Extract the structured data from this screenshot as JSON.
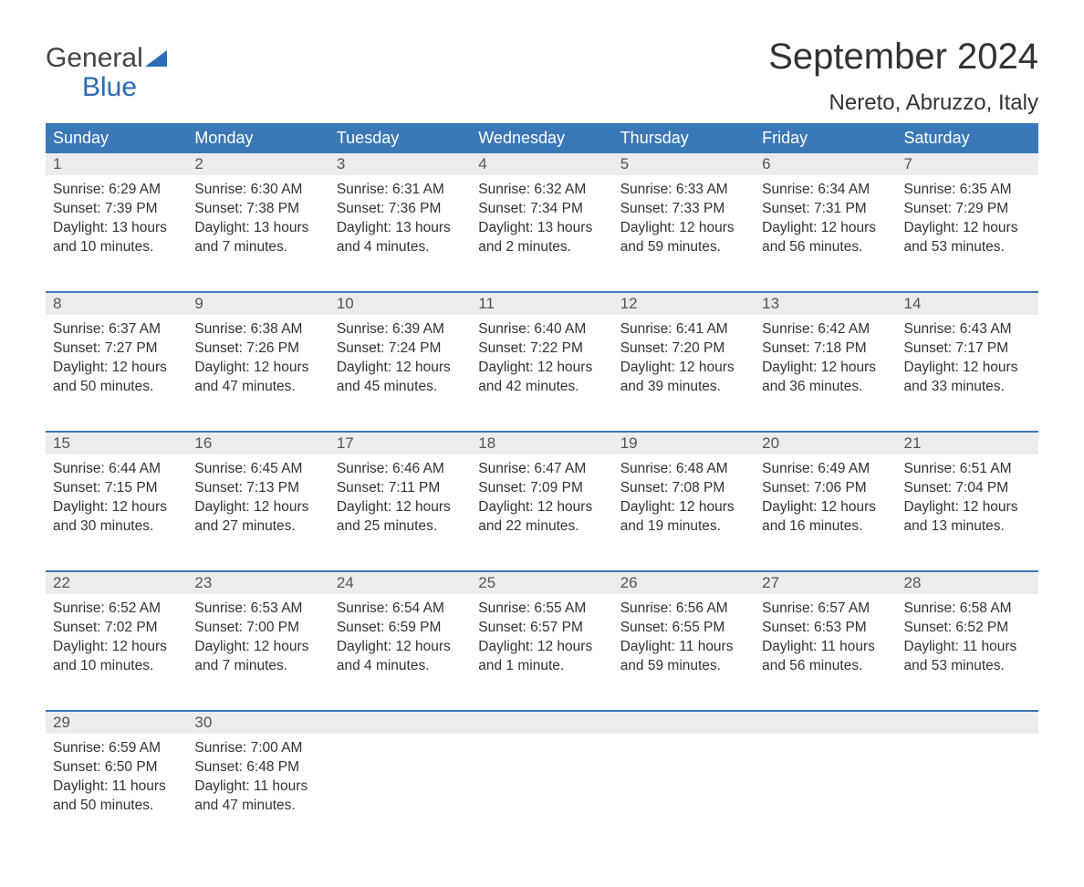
{
  "logo": {
    "text1": "General",
    "text2": "Blue"
  },
  "title": "September 2024",
  "location": "Nereto, Abruzzo, Italy",
  "colors": {
    "header_bg": "#3b78b8",
    "header_text": "#ffffff",
    "daynum_bg": "#ececec",
    "body_text": "#333333",
    "logo_blue": "#2a6db5",
    "rule": "#3b78b8"
  },
  "weekdays": [
    "Sunday",
    "Monday",
    "Tuesday",
    "Wednesday",
    "Thursday",
    "Friday",
    "Saturday"
  ],
  "weeks": [
    [
      {
        "n": "1",
        "sunrise": "6:29 AM",
        "sunset": "7:39 PM",
        "daylight": "13 hours and 10 minutes."
      },
      {
        "n": "2",
        "sunrise": "6:30 AM",
        "sunset": "7:38 PM",
        "daylight": "13 hours and 7 minutes."
      },
      {
        "n": "3",
        "sunrise": "6:31 AM",
        "sunset": "7:36 PM",
        "daylight": "13 hours and 4 minutes."
      },
      {
        "n": "4",
        "sunrise": "6:32 AM",
        "sunset": "7:34 PM",
        "daylight": "13 hours and 2 minutes."
      },
      {
        "n": "5",
        "sunrise": "6:33 AM",
        "sunset": "7:33 PM",
        "daylight": "12 hours and 59 minutes."
      },
      {
        "n": "6",
        "sunrise": "6:34 AM",
        "sunset": "7:31 PM",
        "daylight": "12 hours and 56 minutes."
      },
      {
        "n": "7",
        "sunrise": "6:35 AM",
        "sunset": "7:29 PM",
        "daylight": "12 hours and 53 minutes."
      }
    ],
    [
      {
        "n": "8",
        "sunrise": "6:37 AM",
        "sunset": "7:27 PM",
        "daylight": "12 hours and 50 minutes."
      },
      {
        "n": "9",
        "sunrise": "6:38 AM",
        "sunset": "7:26 PM",
        "daylight": "12 hours and 47 minutes."
      },
      {
        "n": "10",
        "sunrise": "6:39 AM",
        "sunset": "7:24 PM",
        "daylight": "12 hours and 45 minutes."
      },
      {
        "n": "11",
        "sunrise": "6:40 AM",
        "sunset": "7:22 PM",
        "daylight": "12 hours and 42 minutes."
      },
      {
        "n": "12",
        "sunrise": "6:41 AM",
        "sunset": "7:20 PM",
        "daylight": "12 hours and 39 minutes."
      },
      {
        "n": "13",
        "sunrise": "6:42 AM",
        "sunset": "7:18 PM",
        "daylight": "12 hours and 36 minutes."
      },
      {
        "n": "14",
        "sunrise": "6:43 AM",
        "sunset": "7:17 PM",
        "daylight": "12 hours and 33 minutes."
      }
    ],
    [
      {
        "n": "15",
        "sunrise": "6:44 AM",
        "sunset": "7:15 PM",
        "daylight": "12 hours and 30 minutes."
      },
      {
        "n": "16",
        "sunrise": "6:45 AM",
        "sunset": "7:13 PM",
        "daylight": "12 hours and 27 minutes."
      },
      {
        "n": "17",
        "sunrise": "6:46 AM",
        "sunset": "7:11 PM",
        "daylight": "12 hours and 25 minutes."
      },
      {
        "n": "18",
        "sunrise": "6:47 AM",
        "sunset": "7:09 PM",
        "daylight": "12 hours and 22 minutes."
      },
      {
        "n": "19",
        "sunrise": "6:48 AM",
        "sunset": "7:08 PM",
        "daylight": "12 hours and 19 minutes."
      },
      {
        "n": "20",
        "sunrise": "6:49 AM",
        "sunset": "7:06 PM",
        "daylight": "12 hours and 16 minutes."
      },
      {
        "n": "21",
        "sunrise": "6:51 AM",
        "sunset": "7:04 PM",
        "daylight": "12 hours and 13 minutes."
      }
    ],
    [
      {
        "n": "22",
        "sunrise": "6:52 AM",
        "sunset": "7:02 PM",
        "daylight": "12 hours and 10 minutes."
      },
      {
        "n": "23",
        "sunrise": "6:53 AM",
        "sunset": "7:00 PM",
        "daylight": "12 hours and 7 minutes."
      },
      {
        "n": "24",
        "sunrise": "6:54 AM",
        "sunset": "6:59 PM",
        "daylight": "12 hours and 4 minutes."
      },
      {
        "n": "25",
        "sunrise": "6:55 AM",
        "sunset": "6:57 PM",
        "daylight": "12 hours and 1 minute."
      },
      {
        "n": "26",
        "sunrise": "6:56 AM",
        "sunset": "6:55 PM",
        "daylight": "11 hours and 59 minutes."
      },
      {
        "n": "27",
        "sunrise": "6:57 AM",
        "sunset": "6:53 PM",
        "daylight": "11 hours and 56 minutes."
      },
      {
        "n": "28",
        "sunrise": "6:58 AM",
        "sunset": "6:52 PM",
        "daylight": "11 hours and 53 minutes."
      }
    ],
    [
      {
        "n": "29",
        "sunrise": "6:59 AM",
        "sunset": "6:50 PM",
        "daylight": "11 hours and 50 minutes."
      },
      {
        "n": "30",
        "sunrise": "7:00 AM",
        "sunset": "6:48 PM",
        "daylight": "11 hours and 47 minutes."
      },
      null,
      null,
      null,
      null,
      null
    ]
  ],
  "labels": {
    "sunrise": "Sunrise: ",
    "sunset": "Sunset: ",
    "daylight": "Daylight: "
  }
}
